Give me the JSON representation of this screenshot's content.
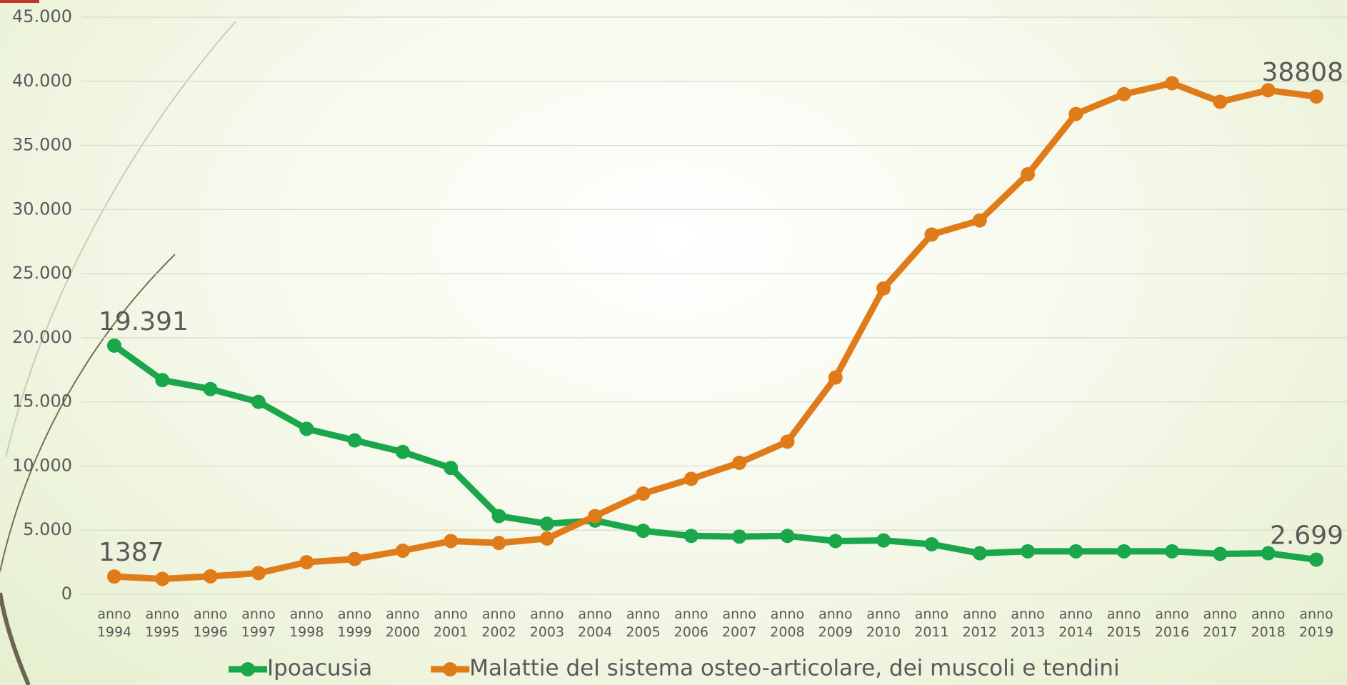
{
  "chart_data": {
    "type": "line",
    "categories": [
      "anno 1994",
      "anno 1995",
      "anno 1996",
      "anno 1997",
      "anno 1998",
      "anno 1999",
      "anno 2000",
      "anno 2001",
      "anno 2002",
      "anno 2003",
      "anno 2004",
      "anno 2005",
      "anno 2006",
      "anno 2007",
      "anno 2008",
      "anno 2009",
      "anno 2010",
      "anno 2011",
      "anno 2012",
      "anno 2013",
      "anno 2014",
      "anno 2015",
      "anno 2016",
      "anno 2017",
      "anno 2018",
      "anno 2019"
    ],
    "series": [
      {
        "name": "Ipoacusia",
        "color": "#1aa64a",
        "values": [
          19391,
          16700,
          16000,
          15000,
          12900,
          12000,
          11100,
          9850,
          6100,
          5500,
          5750,
          4950,
          4550,
          4500,
          4550,
          4150,
          4200,
          3900,
          3200,
          3350,
          3350,
          3350,
          3350,
          3150,
          3200,
          2699
        ],
        "value_labels": [
          "19.391",
          null,
          null,
          null,
          null,
          null,
          null,
          null,
          null,
          null,
          null,
          null,
          null,
          null,
          null,
          null,
          null,
          null,
          null,
          null,
          null,
          null,
          null,
          null,
          null,
          "2.699"
        ]
      },
      {
        "name": "Malattie del sistema osteo-articolare, dei muscoli e tendini",
        "color": "#e07b1a",
        "values": [
          1387,
          1200,
          1400,
          1650,
          2500,
          2750,
          3400,
          4150,
          4000,
          4350,
          6100,
          7850,
          9000,
          10250,
          11900,
          16900,
          23850,
          28050,
          29150,
          32750,
          37450,
          39000,
          39850,
          38400,
          39300,
          38808
        ],
        "value_labels": [
          "1387",
          null,
          null,
          null,
          null,
          null,
          null,
          null,
          null,
          null,
          null,
          null,
          null,
          null,
          null,
          null,
          null,
          null,
          null,
          null,
          null,
          null,
          null,
          null,
          null,
          "38808"
        ]
      }
    ],
    "ylim": [
      0,
      45000
    ],
    "yticks": [
      0,
      {
        "value": 5000,
        "label": "5.000"
      },
      {
        "value": 10000,
        "label": "10.000"
      },
      {
        "value": 15000,
        "label": "15.000"
      },
      {
        "value": 20000,
        "label": "20.000"
      },
      {
        "value": 25000,
        "label": "25.000"
      },
      {
        "value": 30000,
        "label": "30.000"
      },
      {
        "value": 35000,
        "label": "35.000"
      },
      {
        "value": 40000,
        "label": "40.000"
      },
      {
        "value": 45000,
        "label": "45.000"
      }
    ],
    "grid": true,
    "legend": "bottom"
  }
}
